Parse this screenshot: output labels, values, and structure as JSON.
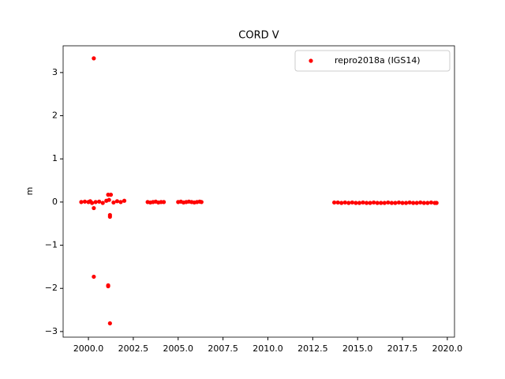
{
  "chart_data": {
    "type": "scatter",
    "title": "CORD V",
    "ylabel": "m",
    "x": [
      1999.6,
      1999.8,
      2000.0,
      2000.1,
      2000.2,
      2000.3,
      2000.3,
      2000.3,
      2000.4,
      2000.6,
      2000.8,
      2001.0,
      2001.1,
      2001.1,
      2001.1,
      2001.15,
      2001.2,
      2001.2,
      2001.2,
      2001.25,
      2001.4,
      2001.6,
      2001.8,
      2002.0,
      2003.3,
      2003.45,
      2003.6,
      2003.75,
      2003.9,
      2004.05,
      2004.2,
      2005.0,
      2005.15,
      2005.3,
      2005.45,
      2005.6,
      2005.75,
      2005.9,
      2006.05,
      2006.2,
      2006.3,
      2013.7,
      2013.9,
      2014.1,
      2014.3,
      2014.5,
      2014.7,
      2014.9,
      2015.1,
      2015.3,
      2015.5,
      2015.7,
      2015.9,
      2016.1,
      2016.3,
      2016.5,
      2016.7,
      2016.9,
      2017.1,
      2017.3,
      2017.5,
      2017.7,
      2017.9,
      2018.1,
      2018.3,
      2018.5,
      2018.7,
      2018.9,
      2019.1,
      2019.3,
      2019.4
    ],
    "series": [
      {
        "name": "repro2018a (IGS14)",
        "color": "#ff0000",
        "values": [
          0,
          0.01,
          0,
          0.02,
          -0.02,
          3.33,
          -1.73,
          -0.14,
          0,
          0.01,
          -0.02,
          0.03,
          -1.93,
          -1.95,
          0.17,
          0.05,
          -2.81,
          -0.3,
          -0.34,
          0.17,
          -0.01,
          0.02,
          0,
          0.03,
          0,
          -0.01,
          0,
          0.01,
          -0.01,
          0,
          0,
          0,
          0.01,
          -0.01,
          0,
          0.01,
          0,
          -0.01,
          0,
          0.01,
          0,
          -0.01,
          -0.01,
          -0.02,
          -0.01,
          -0.02,
          -0.01,
          -0.02,
          -0.02,
          -0.01,
          -0.02,
          -0.02,
          -0.01,
          -0.02,
          -0.02,
          -0.02,
          -0.01,
          -0.02,
          -0.02,
          -0.01,
          -0.02,
          -0.02,
          -0.01,
          -0.02,
          -0.02,
          -0.01,
          -0.02,
          -0.02,
          -0.01,
          -0.02,
          -0.02
        ]
      }
    ],
    "xlim": [
      1998.59,
      2020.4
    ],
    "ylim": [
      -3.13,
      3.62
    ],
    "xticks": [
      {
        "value": 2000,
        "label": "2000.0"
      },
      {
        "value": 2002.5,
        "label": "2002.5"
      },
      {
        "value": 2005,
        "label": "2005.0"
      },
      {
        "value": 2007.5,
        "label": "2007.5"
      },
      {
        "value": 2010,
        "label": "2010.0"
      },
      {
        "value": 2012.5,
        "label": "2012.5"
      },
      {
        "value": 2015,
        "label": "2015.0"
      },
      {
        "value": 2017.5,
        "label": "2017.5"
      },
      {
        "value": 2020,
        "label": "2020.0"
      }
    ],
    "yticks": [
      {
        "value": -3,
        "label": "−3"
      },
      {
        "value": -2,
        "label": "−2"
      },
      {
        "value": -1,
        "label": "−1"
      },
      0,
      1,
      2,
      3
    ],
    "legend": "upper right"
  }
}
